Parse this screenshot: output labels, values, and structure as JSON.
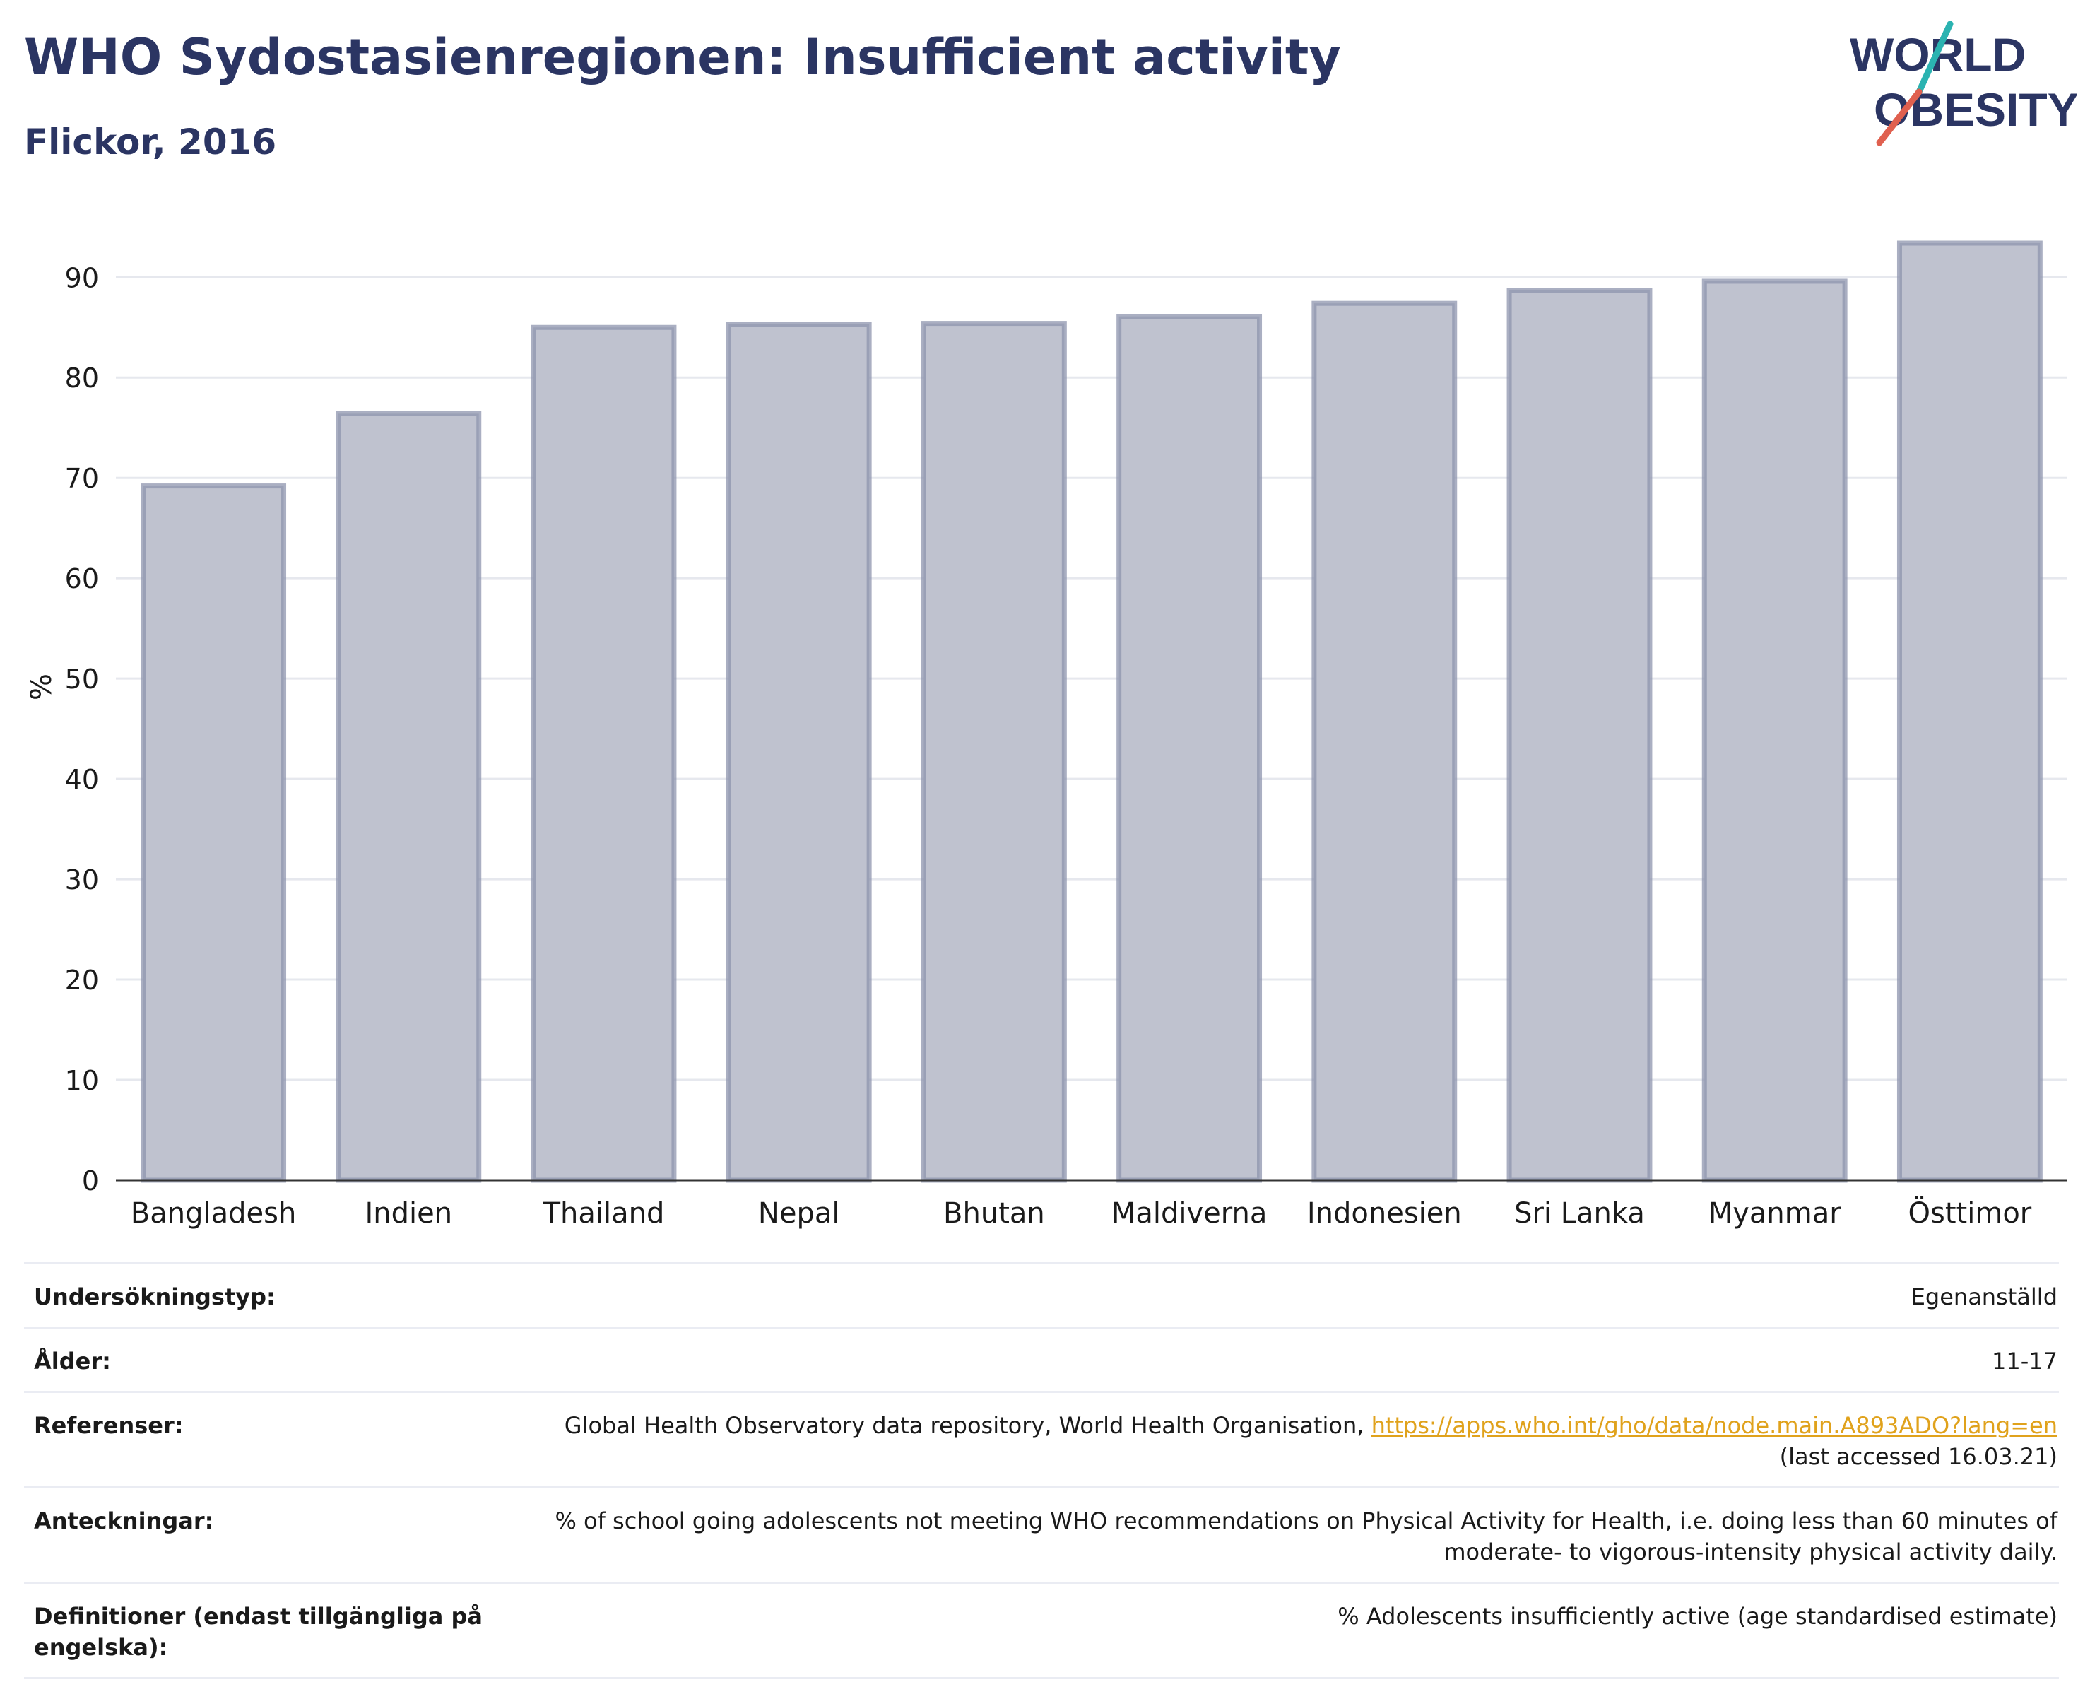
{
  "header": {
    "title": "WHO Sydostasienregionen: Insufficient activity",
    "subtitle": "Flickor, 2016"
  },
  "logo": {
    "line1": "WORLD",
    "line2": "OBESITY",
    "colors": {
      "text": "#2b3563",
      "accent_teal": "#2bb3b1",
      "accent_red": "#e0604f"
    }
  },
  "chart_data": {
    "type": "bar",
    "categories": [
      "Bangladesh",
      "Indien",
      "Thailand",
      "Nepal",
      "Bhutan",
      "Maldiverna",
      "Indonesien",
      "Sri Lanka",
      "Myanmar",
      "Östtimor"
    ],
    "values": [
      69.2,
      76.4,
      85.0,
      85.3,
      85.4,
      86.1,
      87.4,
      88.7,
      89.6,
      93.4
    ],
    "ylabel": "%",
    "yticks": [
      0,
      10,
      20,
      30,
      40,
      50,
      60,
      70,
      80,
      90
    ],
    "ylim": [
      0,
      96.5
    ],
    "grid": true,
    "colors": {
      "bar_fill": "#bfc2cf",
      "bar_edge": "#8e94ad",
      "axis": "#333333",
      "grid": "#e6e8ee"
    }
  },
  "info": [
    {
      "label": "Undersökningstyp:",
      "value": "Egenanställd"
    },
    {
      "label": "Ålder:",
      "value": "11-17"
    },
    {
      "label": "Referenser:",
      "value": "Global Health Observatory data repository, World Health Organisation, ",
      "link": "https://apps.who.int/gho/data/node.main.A893ADO?lang=en",
      "suffix": "(last accessed 16.03.21)"
    },
    {
      "label": "Anteckningar:",
      "value": "% of school going adolescents not meeting WHO recommendations on Physical Activity for Health, i.e. doing less than 60 minutes of moderate- to vigorous-intensity physical activity daily."
    },
    {
      "label": "Definitioner (endast tillgängliga på engelska):",
      "value": "% Adolescents insufficiently active (age standardised estimate)"
    }
  ]
}
